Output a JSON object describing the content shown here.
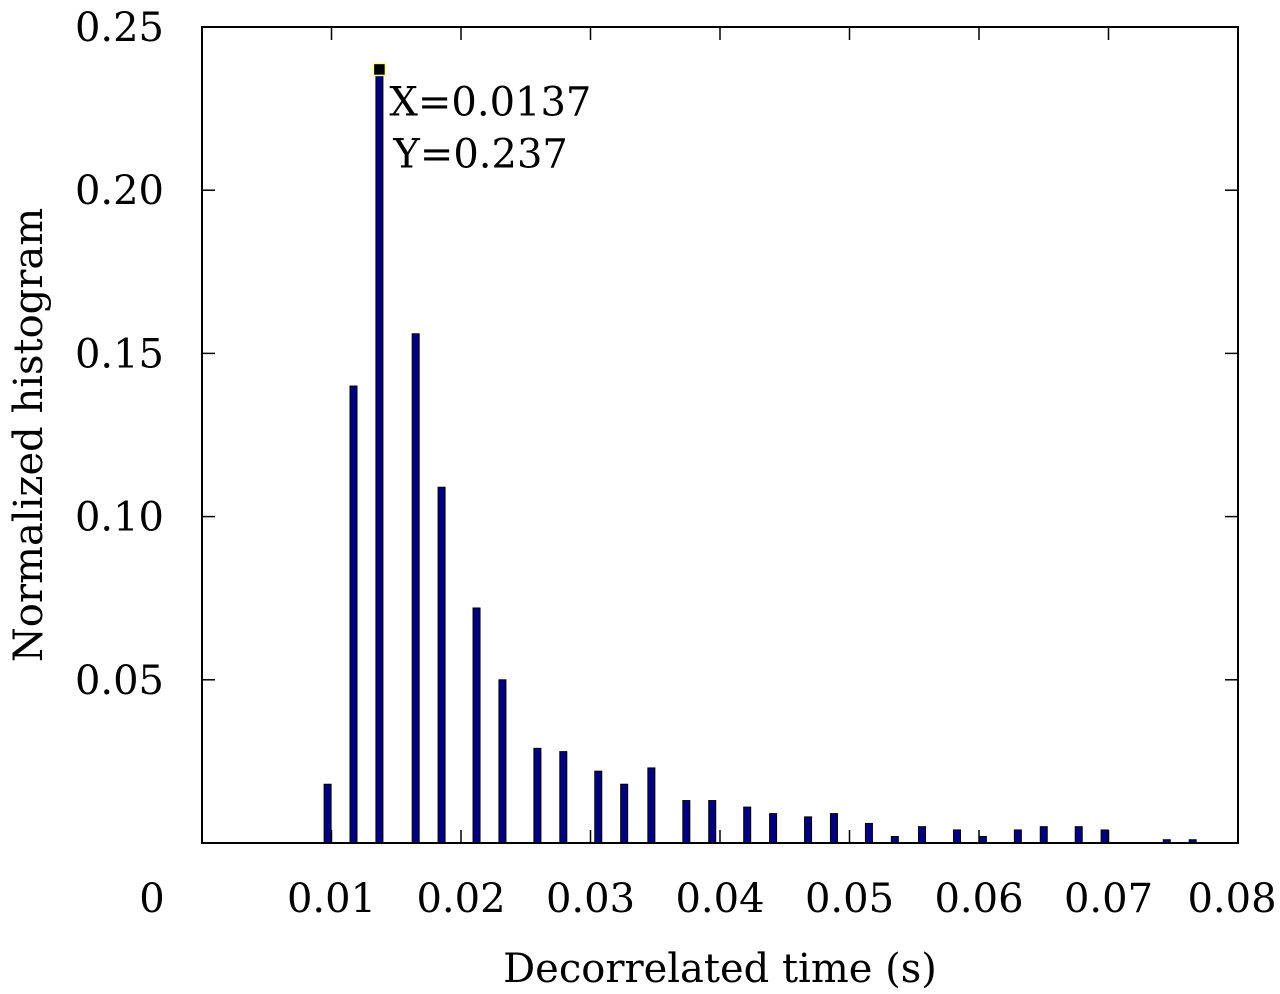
{
  "chart_data": {
    "type": "bar",
    "xlabel": "Decorrelated time (s)",
    "ylabel": "Normalized histogram",
    "xlim": [
      0,
      0.08
    ],
    "ylim": [
      0,
      0.25
    ],
    "x_ticks": [
      "0",
      "0.01",
      "0.02",
      "0.03",
      "0.04",
      "0.05",
      "0.06",
      "0.07",
      "0.08"
    ],
    "y_ticks": [
      "0.05",
      "0.10",
      "0.15",
      "0.20",
      "0.25"
    ],
    "grid": false,
    "bar_color": "#000080",
    "x": [
      0.0097,
      0.0117,
      0.0137,
      0.0165,
      0.0185,
      0.0212,
      0.0232,
      0.0259,
      0.0279,
      0.0306,
      0.0326,
      0.0347,
      0.0374,
      0.0394,
      0.0421,
      0.0441,
      0.0468,
      0.0488,
      0.0515,
      0.0535,
      0.0556,
      0.0583,
      0.0603,
      0.063,
      0.065,
      0.0677,
      0.0697,
      0.0745,
      0.0765
    ],
    "values": [
      0.018,
      0.14,
      0.236,
      0.156,
      0.109,
      0.072,
      0.05,
      0.029,
      0.028,
      0.022,
      0.018,
      0.023,
      0.013,
      0.013,
      0.011,
      0.009,
      0.008,
      0.009,
      0.006,
      0.002,
      0.005,
      0.004,
      0.002,
      0.004,
      0.005,
      0.005,
      0.004,
      0.001,
      0.001
    ],
    "marker": {
      "x": 0.0137,
      "y": 0.237
    },
    "annotation": {
      "x_text": "X=0.0137",
      "y_text": "Y=0.237"
    }
  }
}
